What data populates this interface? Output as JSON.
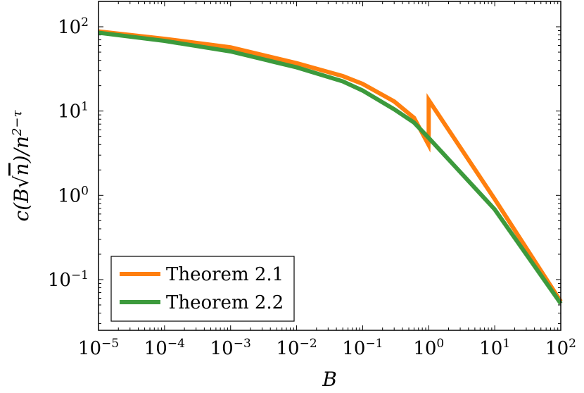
{
  "chart_data": {
    "type": "line",
    "xscale": "log",
    "yscale": "log",
    "xlim": [
      1e-05,
      100
    ],
    "ylim": [
      0.025,
      200
    ],
    "xticks": [
      {
        "value": 1e-05,
        "base": "10",
        "exp": "−5"
      },
      {
        "value": 0.0001,
        "base": "10",
        "exp": "−4"
      },
      {
        "value": 0.001,
        "base": "10",
        "exp": "−3"
      },
      {
        "value": 0.01,
        "base": "10",
        "exp": "−2"
      },
      {
        "value": 0.1,
        "base": "10",
        "exp": "−1"
      },
      {
        "value": 1,
        "base": "10",
        "exp": "0"
      },
      {
        "value": 10,
        "base": "10",
        "exp": "1"
      },
      {
        "value": 100,
        "base": "10",
        "exp": "2"
      }
    ],
    "yticks": [
      {
        "value": 0.1,
        "base": "10",
        "exp": "−1"
      },
      {
        "value": 1,
        "base": "10",
        "exp": "0"
      },
      {
        "value": 10,
        "base": "10",
        "exp": "1"
      },
      {
        "value": 100,
        "base": "10",
        "exp": "2"
      }
    ],
    "xlabel": "B",
    "ylabel": {
      "pre": "c(B",
      "radical": "√",
      "radicand": "n",
      "post": ")/n",
      "exp": "2−τ"
    },
    "legend": "bottom-left",
    "grid": false,
    "series": [
      {
        "name": "Theorem 2.1",
        "color": "#ff7f0e",
        "x": [
          1e-05,
          0.0001,
          0.001,
          0.01,
          0.05,
          0.1,
          0.3,
          0.6,
          0.99,
          0.99,
          1.0,
          1.0,
          10,
          100
        ],
        "y": [
          88,
          72,
          57,
          37,
          26,
          21,
          13,
          8.3,
          4,
          4,
          5.5,
          13.5,
          0.9,
          0.055
        ]
      },
      {
        "name": "Theorem 2.2",
        "color": "#3c9a3c",
        "x": [
          1e-05,
          0.0001,
          0.001,
          0.01,
          0.05,
          0.1,
          0.3,
          0.6,
          1,
          10,
          100
        ],
        "y": [
          85,
          68,
          51,
          33,
          22.5,
          17.5,
          10.5,
          7.3,
          4.8,
          0.68,
          0.052
        ]
      }
    ]
  }
}
